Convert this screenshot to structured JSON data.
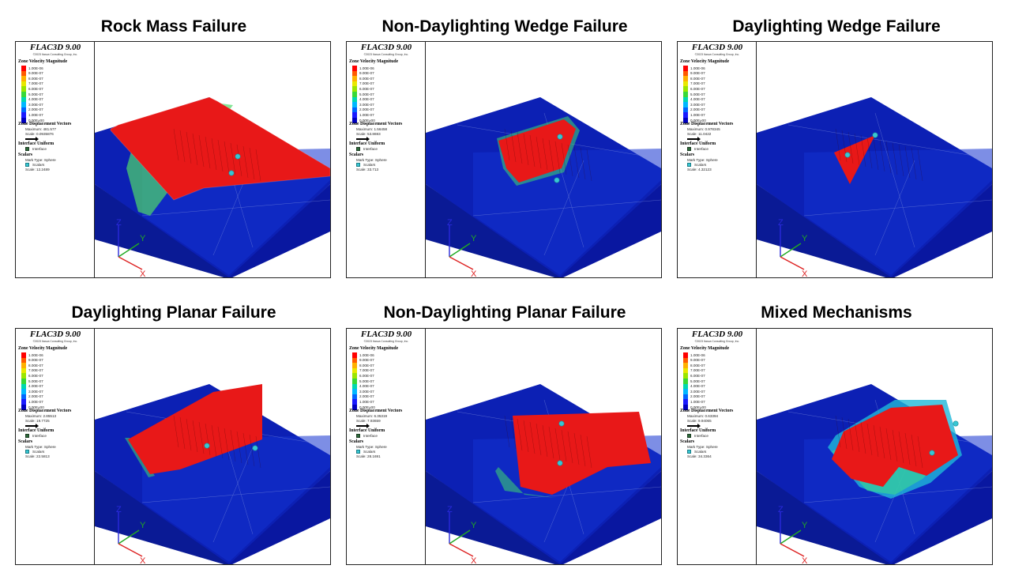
{
  "legend_common": {
    "app_title": "FLAC3D 9.00",
    "copyright": "©2023 Itasca Consulting Group, Inc.",
    "velocity_heading": "Zone Velocity Magnitude",
    "velocity_levels": [
      "1.00E-06",
      "9.00E-07",
      "8.00E-07",
      "7.00E-07",
      "6.00E-07",
      "5.00E-07",
      "4.00E-07",
      "3.00E-07",
      "2.00E-07",
      "1.00E-07",
      "0.00E+00"
    ],
    "displacement_heading": "Zone Displacement Vectors",
    "interface_heading": "Interface Uniform",
    "interface_item": "Interface",
    "scalars_heading": "Scalars",
    "mark_type": "Mark Type: Sphere",
    "scalars_item": "Scalars",
    "axis_z": "Z",
    "axis_y": "Y",
    "axis_x": "X"
  },
  "colors": {
    "scale": [
      "#ff0000",
      "#ff5a00",
      "#ffb000",
      "#e8e800",
      "#9be600",
      "#38d838",
      "#00d8b0",
      "#00b8ff",
      "#0066ff",
      "#1a1aff",
      "#0000c0"
    ],
    "model_blue": "#0c20b4",
    "failure_red": "#e81818",
    "sphere": "#37c7d4"
  },
  "panels": [
    {
      "title": "Rock Mass Failure",
      "maximum": "Maximum: 481.577",
      "disp_scale": "Scale: 0.0935876",
      "scalar_scale": "Scale: 12.2489"
    },
    {
      "title": "Non-Daylighting Wedge Failure",
      "maximum": "Maximum: 1.56458",
      "disp_scale": "Scale: 53.8693",
      "scalar_scale": "Scale: 33.713"
    },
    {
      "title": "Daylighting Wedge Failure",
      "maximum": "Maximum: 0.978345",
      "disp_scale": "Scale: 11.0422",
      "scalar_scale": "Scale: 4.32123"
    },
    {
      "title": "Daylighting Planar Failure",
      "maximum": "Maximum: 2.85513",
      "disp_scale": "Scale: 19.7725",
      "scalar_scale": "Scale: 22.5813"
    },
    {
      "title": "Non-Daylighting Planar Failure",
      "maximum": "Maximum: 6.35319",
      "disp_scale": "Scale: 7.93659",
      "scalar_scale": "Scale: 28.1691"
    },
    {
      "title": "Mixed Mechanisms",
      "maximum": "Maximum: 0.63394",
      "disp_scale": "Scale: 9.94065",
      "scalar_scale": "Scale: 34.3364"
    }
  ]
}
